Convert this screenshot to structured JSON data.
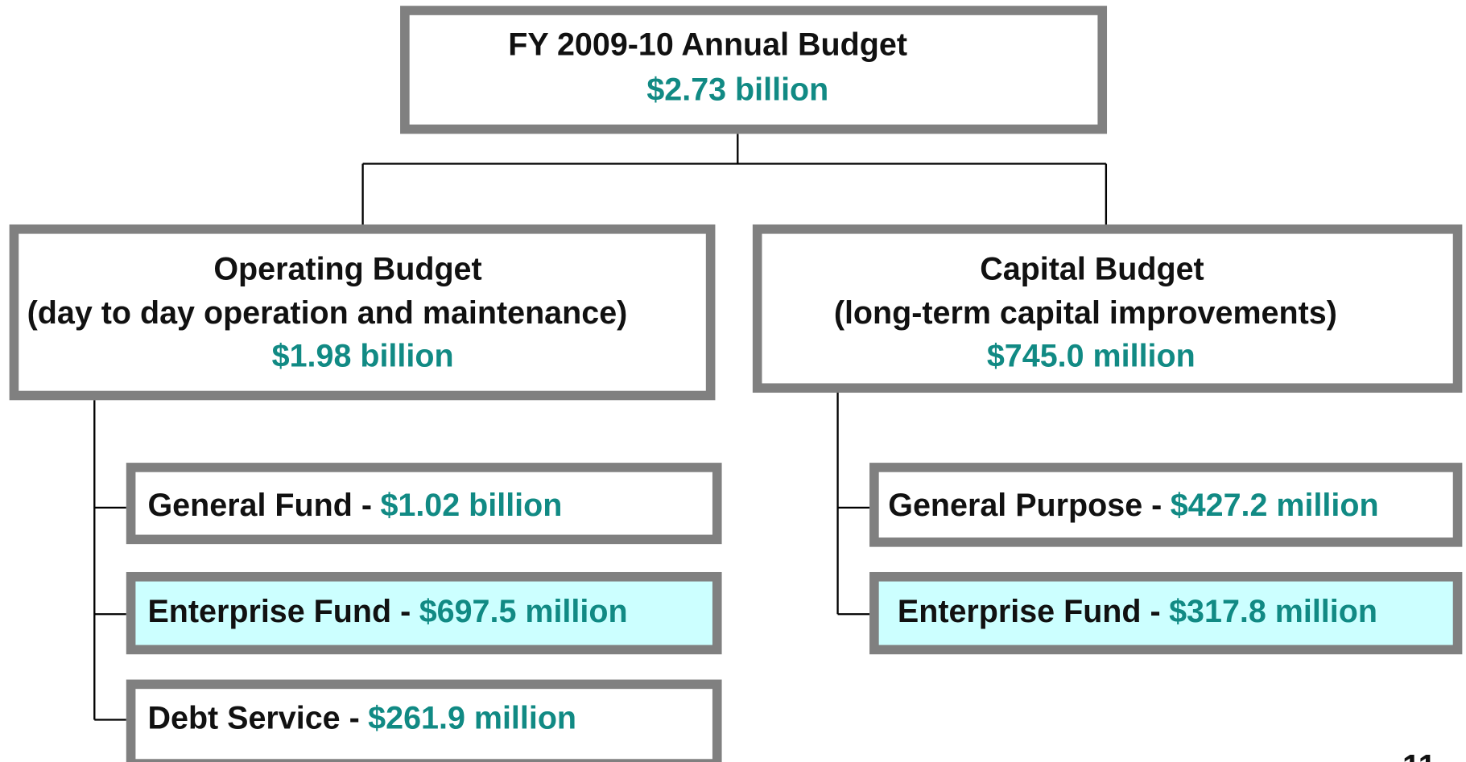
{
  "header": {
    "title": "FY 2009-10 Annual Budget",
    "amount": "$2.73 billion"
  },
  "branches": [
    {
      "title": "Operating Budget",
      "description": "(day to day operation and maintenance)",
      "amount": "$1.98 billion",
      "funds": [
        {
          "name": "General Fund -",
          "amount": "$1.02 billion"
        },
        {
          "name": "Enterprise Fund -",
          "amount": "$697.5 million"
        },
        {
          "name": "Debt Service -",
          "amount": "$261.9 million"
        }
      ]
    },
    {
      "title": "Capital Budget",
      "description": "(long-term capital improvements)",
      "amount": "$745.0 million",
      "funds": [
        {
          "name": "General Purpose -",
          "amount": "$427.2 million"
        },
        {
          "name": "Enterprise Fund -",
          "amount": "$317.8 million"
        }
      ]
    }
  ],
  "page_number": "11"
}
